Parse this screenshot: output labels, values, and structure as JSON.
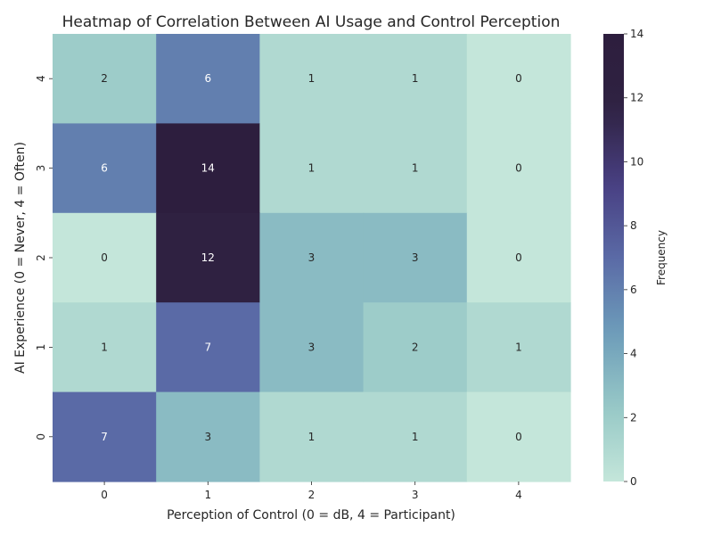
{
  "chart_data": {
    "type": "heatmap",
    "title": "Heatmap of Correlation Between AI Usage and Control Perception",
    "xlabel": "Perception of Control (0 = dB, 4 = Participant)",
    "ylabel": "AI Experience (0 = Never, 4 = Often)",
    "x_categories": [
      "0",
      "1",
      "2",
      "3",
      "4"
    ],
    "y_categories": [
      "4",
      "3",
      "2",
      "1",
      "0"
    ],
    "values": [
      [
        2,
        6,
        1,
        1,
        0
      ],
      [
        6,
        14,
        1,
        1,
        0
      ],
      [
        0,
        12,
        3,
        3,
        0
      ],
      [
        1,
        7,
        3,
        2,
        1
      ],
      [
        7,
        3,
        1,
        1,
        0
      ]
    ],
    "colorbar": {
      "label": "Frequency",
      "range": [
        0,
        14
      ],
      "ticks": [
        "0",
        "2",
        "4",
        "6",
        "8",
        "10",
        "12",
        "14"
      ]
    },
    "colormap": [
      "#c4e6da",
      "#96c8c6",
      "#6d9cba",
      "#5a6aa6",
      "#483f82",
      "#2f2242",
      "#2d1e3e"
    ]
  }
}
